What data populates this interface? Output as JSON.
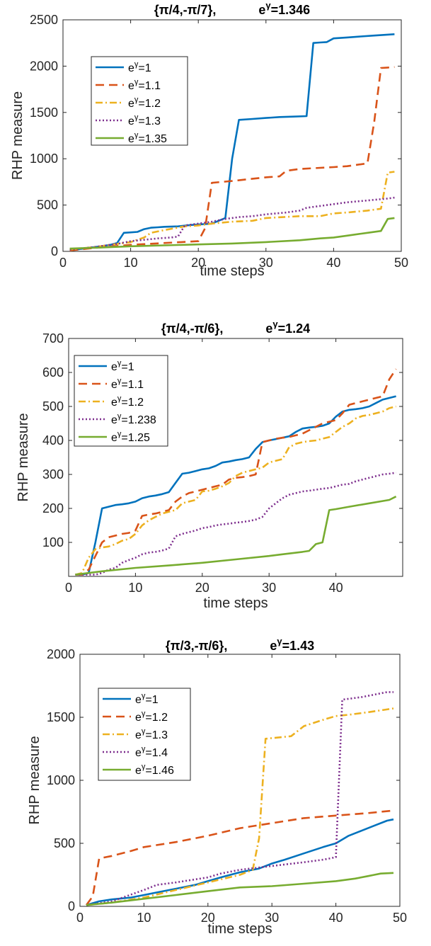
{
  "chart_data": [
    {
      "type": "line",
      "title": {
        "set": "{π/4,-π/7},",
        "eg_label": "e",
        "eg_sup": "γ",
        "eg_value": "=1.346"
      },
      "xlabel": "time steps",
      "ylabel": "RHP measure",
      "xlim": [
        0,
        50
      ],
      "ylim": [
        0,
        2500
      ],
      "xticks": [
        "0",
        "10",
        "20",
        "30",
        "40",
        "50"
      ],
      "yticks": [
        "0",
        "500",
        "1000",
        "1500",
        "2000",
        "2500"
      ],
      "legend_position": "top-left",
      "series": [
        {
          "name_base": "e",
          "name_sup": "γ",
          "name_value": "=1",
          "color": "#0072BD",
          "dash": "solid",
          "x": [
            1,
            3,
            5,
            7,
            8,
            9,
            10,
            11,
            12,
            13,
            14,
            15,
            17,
            19,
            21,
            22,
            23,
            24,
            25,
            26,
            28,
            30,
            32,
            34,
            36,
            37,
            38,
            39,
            40,
            42,
            44,
            46,
            48,
            49
          ],
          "y": [
            10,
            30,
            50,
            70,
            90,
            200,
            205,
            210,
            240,
            255,
            260,
            265,
            270,
            285,
            295,
            300,
            330,
            360,
            1000,
            1420,
            1430,
            1440,
            1450,
            1455,
            1460,
            2250,
            2255,
            2260,
            2300,
            2310,
            2320,
            2330,
            2340,
            2345
          ]
        },
        {
          "name_base": "e",
          "name_sup": "γ",
          "name_value": "=1.1",
          "color": "#D95319",
          "dash": "dash",
          "x": [
            1,
            5,
            10,
            15,
            20,
            21,
            22,
            25,
            30,
            32,
            33,
            35,
            40,
            42,
            45,
            46,
            47,
            48,
            49
          ],
          "y": [
            10,
            40,
            70,
            90,
            110,
            250,
            740,
            760,
            800,
            810,
            870,
            890,
            910,
            920,
            950,
            1400,
            1980,
            1985,
            1990
          ]
        },
        {
          "name_base": "e",
          "name_sup": "γ",
          "name_value": "=1.2",
          "color": "#EDB120",
          "dash": "dashdot",
          "x": [
            1,
            5,
            10,
            12,
            13,
            15,
            18,
            20,
            22,
            25,
            28,
            30,
            35,
            38,
            40,
            42,
            45,
            47,
            48,
            49
          ],
          "y": [
            20,
            50,
            100,
            150,
            200,
            230,
            270,
            280,
            300,
            320,
            330,
            360,
            380,
            380,
            410,
            420,
            440,
            460,
            850,
            860
          ]
        },
        {
          "name_base": "e",
          "name_sup": "γ",
          "name_value": "=1.3",
          "color": "#7E2F8E",
          "dash": "dot",
          "x": [
            1,
            5,
            8,
            10,
            14,
            16,
            17,
            18,
            20,
            22,
            24,
            26,
            28,
            30,
            33,
            35,
            36,
            38,
            40,
            42,
            45,
            48,
            49
          ],
          "y": [
            20,
            50,
            80,
            110,
            140,
            150,
            160,
            280,
            300,
            320,
            350,
            370,
            380,
            400,
            420,
            440,
            470,
            490,
            510,
            530,
            550,
            570,
            580
          ]
        },
        {
          "name_base": "e",
          "name_sup": "γ",
          "name_value": "=1.35",
          "color": "#77AC30",
          "dash": "solid",
          "x": [
            1,
            5,
            10,
            15,
            20,
            25,
            30,
            35,
            38,
            40,
            42,
            44,
            45,
            47,
            48,
            49
          ],
          "y": [
            30,
            40,
            55,
            65,
            75,
            85,
            100,
            120,
            140,
            150,
            170,
            190,
            200,
            220,
            350,
            360
          ]
        }
      ]
    },
    {
      "type": "line",
      "title": {
        "set": "{π/4,-π/6},",
        "eg_label": "e",
        "eg_sup": "γ",
        "eg_value": "=1.24"
      },
      "xlabel": "time steps",
      "ylabel": "RHP measure",
      "xlim": [
        0,
        50
      ],
      "ylim": [
        0,
        700
      ],
      "xticks": [
        "0",
        "10",
        "20",
        "30",
        "40",
        ""
      ],
      "yticks": [
        "",
        "100",
        "200",
        "300",
        "400",
        "500",
        "600",
        "700"
      ],
      "legend_position": "top-left",
      "series": [
        {
          "name_base": "e",
          "name_sup": "γ",
          "name_value": "=1",
          "color": "#0072BD",
          "dash": "solid",
          "x": [
            1,
            2,
            3,
            4,
            5,
            6,
            7,
            8,
            9,
            10,
            11,
            12,
            13,
            14,
            15,
            16,
            17,
            18,
            19,
            20,
            21,
            22,
            23,
            24,
            25,
            26,
            27,
            28,
            29,
            30,
            31,
            32,
            33,
            34,
            35,
            36,
            37,
            38,
            39,
            40,
            41,
            42,
            43,
            44,
            45,
            46,
            47,
            48,
            49
          ],
          "y": [
            5,
            5,
            10,
            100,
            200,
            205,
            210,
            212,
            215,
            220,
            230,
            235,
            238,
            242,
            248,
            275,
            302,
            305,
            310,
            315,
            318,
            325,
            335,
            338,
            342,
            345,
            350,
            375,
            395,
            400,
            404,
            408,
            412,
            425,
            435,
            438,
            440,
            443,
            450,
            470,
            485,
            490,
            492,
            495,
            500,
            510,
            520,
            525,
            530
          ]
        },
        {
          "name_base": "e",
          "name_sup": "γ",
          "name_value": "=1.1",
          "color": "#D95319",
          "dash": "dash",
          "x": [
            1,
            2,
            3,
            4,
            5,
            6,
            7,
            8,
            9,
            10,
            11,
            12,
            13,
            14,
            15,
            16,
            17,
            18,
            19,
            20,
            21,
            22,
            23,
            24,
            25,
            26,
            27,
            28,
            29,
            30,
            31,
            32,
            33,
            34,
            35,
            36,
            37,
            38,
            39,
            40,
            41,
            42,
            43,
            44,
            45,
            46,
            47,
            48,
            49
          ],
          "y": [
            5,
            5,
            20,
            60,
            100,
            115,
            120,
            125,
            128,
            135,
            178,
            182,
            185,
            190,
            195,
            220,
            235,
            245,
            250,
            255,
            260,
            265,
            270,
            285,
            290,
            292,
            295,
            300,
            395,
            400,
            405,
            408,
            410,
            415,
            420,
            430,
            440,
            450,
            455,
            460,
            480,
            505,
            510,
            515,
            520,
            525,
            530,
            580,
            610
          ]
        },
        {
          "name_base": "e",
          "name_sup": "γ",
          "name_value": "=1.2",
          "color": "#EDB120",
          "dash": "dashdot",
          "x": [
            1,
            2,
            3,
            4,
            5,
            6,
            7,
            8,
            9,
            10,
            11,
            12,
            13,
            14,
            15,
            16,
            17,
            18,
            19,
            20,
            21,
            22,
            23,
            24,
            25,
            26,
            27,
            28,
            29,
            30,
            31,
            32,
            33,
            34,
            35,
            36,
            37,
            38,
            39,
            40,
            41,
            42,
            43,
            44,
            45,
            46,
            47,
            48,
            49
          ],
          "y": [
            5,
            10,
            55,
            80,
            85,
            88,
            95,
            105,
            110,
            125,
            150,
            165,
            175,
            185,
            190,
            195,
            215,
            220,
            225,
            250,
            252,
            258,
            265,
            275,
            295,
            305,
            310,
            315,
            320,
            335,
            340,
            345,
            380,
            390,
            395,
            398,
            400,
            405,
            410,
            425,
            440,
            450,
            465,
            472,
            475,
            480,
            485,
            495,
            500
          ]
        },
        {
          "name_base": "e",
          "name_sup": "γ",
          "name_value": "=1.238",
          "color": "#7E2F8E",
          "dash": "dot",
          "x": [
            1,
            2,
            3,
            4,
            5,
            6,
            7,
            8,
            9,
            10,
            11,
            12,
            13,
            14,
            15,
            16,
            17,
            18,
            19,
            20,
            21,
            22,
            23,
            24,
            25,
            26,
            27,
            28,
            29,
            30,
            31,
            32,
            33,
            34,
            35,
            36,
            37,
            38,
            39,
            40,
            41,
            42,
            43,
            44,
            45,
            46,
            47,
            48,
            49
          ],
          "y": [
            5,
            5,
            5,
            5,
            10,
            20,
            25,
            40,
            48,
            55,
            65,
            70,
            72,
            76,
            82,
            118,
            125,
            130,
            135,
            142,
            145,
            150,
            153,
            155,
            158,
            160,
            163,
            167,
            175,
            200,
            215,
            230,
            240,
            245,
            250,
            252,
            255,
            258,
            260,
            265,
            270,
            272,
            280,
            285,
            290,
            295,
            300,
            302,
            305
          ]
        },
        {
          "name_base": "e",
          "name_sup": "γ",
          "name_value": "=1.25",
          "color": "#77AC30",
          "dash": "solid",
          "x": [
            1,
            5,
            10,
            15,
            20,
            25,
            30,
            32,
            35,
            36,
            37,
            38,
            39,
            40,
            42,
            45,
            48,
            49
          ],
          "y": [
            5,
            15,
            25,
            32,
            40,
            50,
            60,
            65,
            72,
            75,
            95,
            100,
            195,
            198,
            205,
            215,
            225,
            235
          ]
        }
      ]
    },
    {
      "type": "line",
      "title": {
        "set": "{π/3,-π/6},",
        "eg_label": "e",
        "eg_sup": "γ",
        "eg_value": "=1.43"
      },
      "xlabel": "time steps",
      "ylabel": "RHP measure",
      "xlim": [
        0,
        50
      ],
      "ylim": [
        0,
        2000
      ],
      "xticks": [
        "0",
        "10",
        "20",
        "30",
        "40",
        "50"
      ],
      "yticks": [
        "0",
        "500",
        "1000",
        "1500",
        "2000"
      ],
      "legend_position": "top-left",
      "series": [
        {
          "name_base": "e",
          "name_sup": "γ",
          "name_value": "=1",
          "color": "#0072BD",
          "dash": "solid",
          "x": [
            1,
            3,
            5,
            8,
            10,
            12,
            15,
            18,
            20,
            22,
            25,
            28,
            30,
            32,
            35,
            38,
            40,
            42,
            44,
            46,
            48,
            49
          ],
          "y": [
            10,
            40,
            55,
            70,
            90,
            110,
            140,
            170,
            200,
            230,
            270,
            300,
            340,
            370,
            420,
            470,
            500,
            560,
            600,
            640,
            680,
            690
          ]
        },
        {
          "name_base": "e",
          "name_sup": "γ",
          "name_value": "=1.2",
          "color": "#D95319",
          "dash": "dash",
          "x": [
            1,
            2,
            3,
            5,
            8,
            10,
            15,
            20,
            25,
            30,
            35,
            40,
            45,
            49
          ],
          "y": [
            10,
            80,
            380,
            400,
            440,
            470,
            510,
            560,
            620,
            660,
            700,
            720,
            740,
            760
          ]
        },
        {
          "name_base": "e",
          "name_sup": "γ",
          "name_value": "=1.3",
          "color": "#EDB120",
          "dash": "dashdot",
          "x": [
            1,
            5,
            10,
            15,
            20,
            25,
            27,
            28,
            29,
            33,
            35,
            38,
            40,
            42,
            45,
            49
          ],
          "y": [
            10,
            30,
            70,
            130,
            190,
            250,
            290,
            540,
            1330,
            1350,
            1430,
            1480,
            1510,
            1520,
            1540,
            1570
          ]
        },
        {
          "name_base": "e",
          "name_sup": "γ",
          "name_value": "=1.4",
          "color": "#7E2F8E",
          "dash": "dot",
          "x": [
            1,
            5,
            10,
            12,
            15,
            20,
            22,
            25,
            30,
            35,
            38,
            39,
            40,
            41,
            44,
            46,
            48,
            49
          ],
          "y": [
            10,
            40,
            130,
            170,
            190,
            230,
            260,
            290,
            320,
            350,
            370,
            380,
            390,
            1640,
            1660,
            1680,
            1700,
            1700
          ]
        },
        {
          "name_base": "e",
          "name_sup": "γ",
          "name_value": "=1.46",
          "color": "#77AC30",
          "dash": "solid",
          "x": [
            1,
            5,
            10,
            15,
            20,
            25,
            30,
            35,
            40,
            43,
            45,
            46,
            47,
            49
          ],
          "y": [
            10,
            30,
            60,
            90,
            120,
            150,
            160,
            180,
            200,
            220,
            240,
            250,
            260,
            265
          ]
        }
      ]
    }
  ]
}
